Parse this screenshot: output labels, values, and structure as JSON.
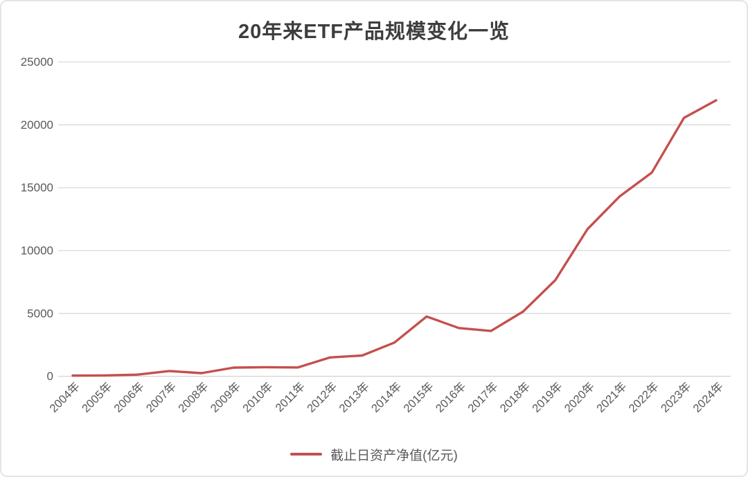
{
  "chart_data": {
    "type": "line",
    "title": "20年来ETF产品规模变化一览",
    "categories": [
      "2004年",
      "2005年",
      "2006年",
      "2007年",
      "2008年",
      "2009年",
      "2010年",
      "2011年",
      "2012年",
      "2013年",
      "2014年",
      "2015年",
      "2016年",
      "2017年",
      "2018年",
      "2019年",
      "2020年",
      "2021年",
      "2022年",
      "2023年",
      "2024年"
    ],
    "series": [
      {
        "name": "截止日资产净值(亿元)",
        "color": "#c4504d",
        "values": [
          54,
          65,
          125,
          420,
          250,
          690,
          720,
          700,
          1500,
          1650,
          2680,
          4750,
          3840,
          3600,
          5150,
          7650,
          11700,
          14300,
          16200,
          20550,
          21950
        ]
      }
    ],
    "xlabel": "",
    "ylabel": "",
    "ylim": [
      0,
      25000
    ],
    "yticks": [
      0,
      5000,
      10000,
      15000,
      20000,
      25000
    ],
    "grid": "horizontal-only",
    "legend_position": "bottom-center",
    "style": {
      "line_color": "#c4504d",
      "grid_color": "#d9d9d9",
      "axis_line_color": "#d2d2d2",
      "tick_label_color": "#595959",
      "title_color": "#3d3d3d",
      "background": "#ffffff",
      "frame_border_color": "#e4e4e4"
    }
  }
}
